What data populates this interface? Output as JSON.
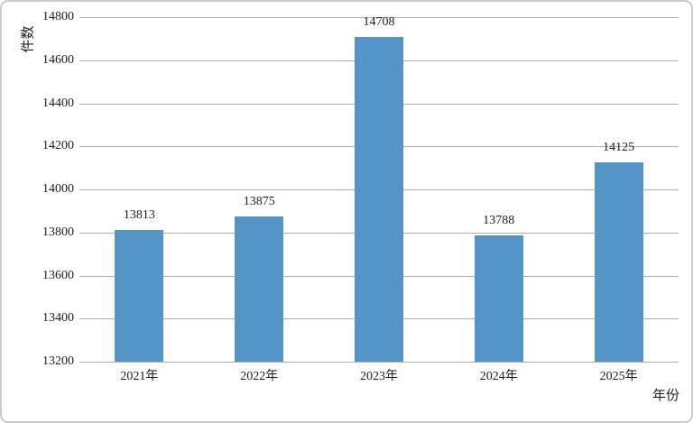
{
  "chart_data": {
    "type": "bar",
    "title": "",
    "categories": [
      "2021年",
      "2022年",
      "2023年",
      "2024年",
      "2025年"
    ],
    "values": [
      13813,
      13875,
      14708,
      13788,
      14125
    ],
    "data_labels": [
      "13813",
      "13875",
      "14708",
      "13788",
      "14125"
    ],
    "xlabel": "年份",
    "ylabel": "件数",
    "ylim": [
      13200,
      14800
    ],
    "ytick_step": 200,
    "yticks": [
      14800,
      14600,
      14400,
      14200,
      14000,
      13800,
      13600,
      13400,
      13200
    ],
    "grid": "horizontal",
    "legend": "none"
  },
  "colors": {
    "bar": "#5594c7",
    "gridline": "#aeaeae",
    "text": "#1d1d1d",
    "border": "#cbcbcb",
    "background": "#ffffff"
  }
}
